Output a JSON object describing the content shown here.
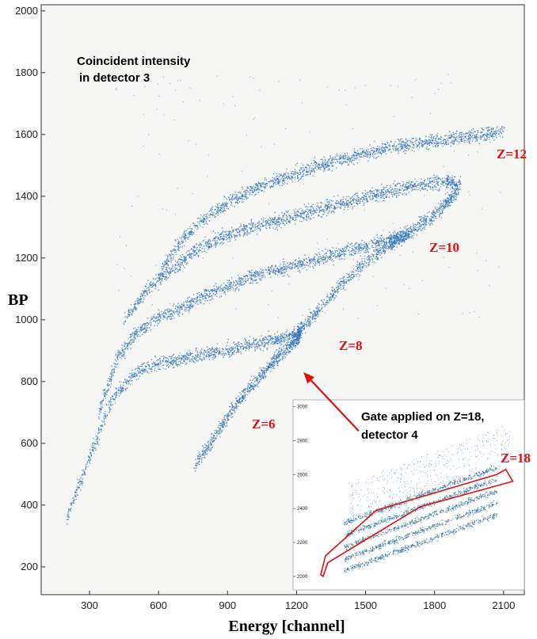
{
  "chart_data": [
    {
      "type": "scatter",
      "title": "",
      "xlabel": "Energy [channel]",
      "ylabel": "BP",
      "xlim": [
        90,
        2190
      ],
      "ylim": [
        110,
        2020
      ],
      "xticks": [
        300,
        600,
        900,
        1200,
        1500,
        1800,
        2100
      ],
      "yticks": [
        200,
        400,
        600,
        800,
        1000,
        1200,
        1400,
        1600,
        1800,
        2000
      ],
      "grid": false,
      "annotations": {
        "coincident": [
          "Coincident intensity",
          "in detector 3"
        ],
        "gate": [
          "Gate applied on Z=18,",
          "detector 4"
        ]
      },
      "bands": [
        {
          "name": "Z=6",
          "label_at": [
            1210,
            875
          ],
          "points": [
            [
              755,
              530
            ],
            [
              830,
              610
            ],
            [
              900,
              690
            ],
            [
              970,
              760
            ],
            [
              1040,
              820
            ],
            [
              1100,
              870
            ],
            [
              1160,
              910
            ],
            [
              1200,
              940
            ],
            [
              1215,
              960
            ]
          ]
        },
        {
          "name": "Z=8",
          "label_at": [
            1300,
            905
          ],
          "points": [
            [
              200,
              360
            ],
            [
              300,
              560
            ],
            [
              400,
              750
            ],
            [
              500,
              830
            ],
            [
              600,
              860
            ],
            [
              700,
              875
            ],
            [
              800,
              890
            ],
            [
              900,
              905
            ],
            [
              1000,
              920
            ],
            [
              1100,
              935
            ],
            [
              1180,
              950
            ],
            [
              1230,
              980
            ],
            [
              1300,
              1040
            ],
            [
              1400,
              1120
            ],
            [
              1500,
              1190
            ],
            [
              1600,
              1245
            ],
            [
              1660,
              1270
            ]
          ]
        },
        {
          "name": "Z=10",
          "label_at": [
            1650,
            1230
          ],
          "points": [
            [
              340,
              700
            ],
            [
              420,
              880
            ],
            [
              500,
              960
            ],
            [
              600,
              1010
            ],
            [
              700,
              1040
            ],
            [
              800,
              1080
            ],
            [
              900,
              1110
            ],
            [
              1000,
              1140
            ],
            [
              1100,
              1160
            ],
            [
              1200,
              1180
            ],
            [
              1300,
              1200
            ],
            [
              1400,
              1220
            ],
            [
              1500,
              1240
            ],
            [
              1600,
              1260
            ],
            [
              1660,
              1270
            ],
            [
              1700,
              1290
            ],
            [
              1780,
              1330
            ],
            [
              1850,
              1380
            ],
            [
              1900,
              1420
            ]
          ]
        },
        {
          "name": "Z=12",
          "label_at": [
            2080,
            1555
          ],
          "points": [
            [
              450,
              1000
            ],
            [
              550,
              1100
            ],
            [
              650,
              1160
            ],
            [
              750,
              1220
            ],
            [
              850,
              1260
            ],
            [
              950,
              1290
            ],
            [
              1050,
              1310
            ],
            [
              1150,
              1330
            ],
            [
              1250,
              1350
            ],
            [
              1350,
              1370
            ],
            [
              1450,
              1390
            ],
            [
              1550,
              1410
            ],
            [
              1650,
              1425
            ],
            [
              1750,
              1440
            ],
            [
              1850,
              1450
            ],
            [
              1910,
              1440
            ]
          ]
        },
        {
          "name": "upper",
          "label_at": null,
          "points": [
            [
              600,
              1150
            ],
            [
              700,
              1260
            ],
            [
              800,
              1330
            ],
            [
              900,
              1380
            ],
            [
              1000,
              1420
            ],
            [
              1100,
              1450
            ],
            [
              1200,
              1475
            ],
            [
              1300,
              1500
            ],
            [
              1400,
              1520
            ],
            [
              1500,
              1540
            ],
            [
              1600,
              1560
            ],
            [
              1700,
              1570
            ],
            [
              1800,
              1580
            ],
            [
              1900,
              1590
            ],
            [
              2000,
              1600
            ],
            [
              2100,
              1610
            ]
          ]
        }
      ],
      "gate_arrow": {
        "from": [
          1470,
          640
        ],
        "to": [
          1230,
          830
        ]
      }
    },
    {
      "type": "scatter",
      "title": "",
      "yticks": [
        2000,
        2200,
        2400,
        2600,
        2800,
        3000
      ],
      "ylim": [
        1920,
        3040
      ],
      "xlim": [
        0,
        1
      ],
      "gate": {
        "name": "Z=18",
        "polygon": [
          [
            0.12,
            2010
          ],
          [
            0.14,
            2120
          ],
          [
            0.36,
            2390
          ],
          [
            0.88,
            2600
          ],
          [
            0.92,
            2630
          ],
          [
            0.95,
            2560
          ],
          [
            0.55,
            2410
          ],
          [
            0.15,
            2080
          ],
          [
            0.13,
            2000
          ]
        ]
      },
      "bands_slope": [
        [
          0.05,
          1950
        ],
        [
          0.65,
          2250
        ]
      ],
      "band_offsets": [
        0,
        70,
        140,
        210,
        280
      ]
    }
  ],
  "colors": {
    "plot_background": "#f6f7f4",
    "points": "#2f6fbf",
    "dense_points": "#42b06a",
    "hot_points": "#e2e23c",
    "labels": "#e01010",
    "axis": "#333333"
  }
}
